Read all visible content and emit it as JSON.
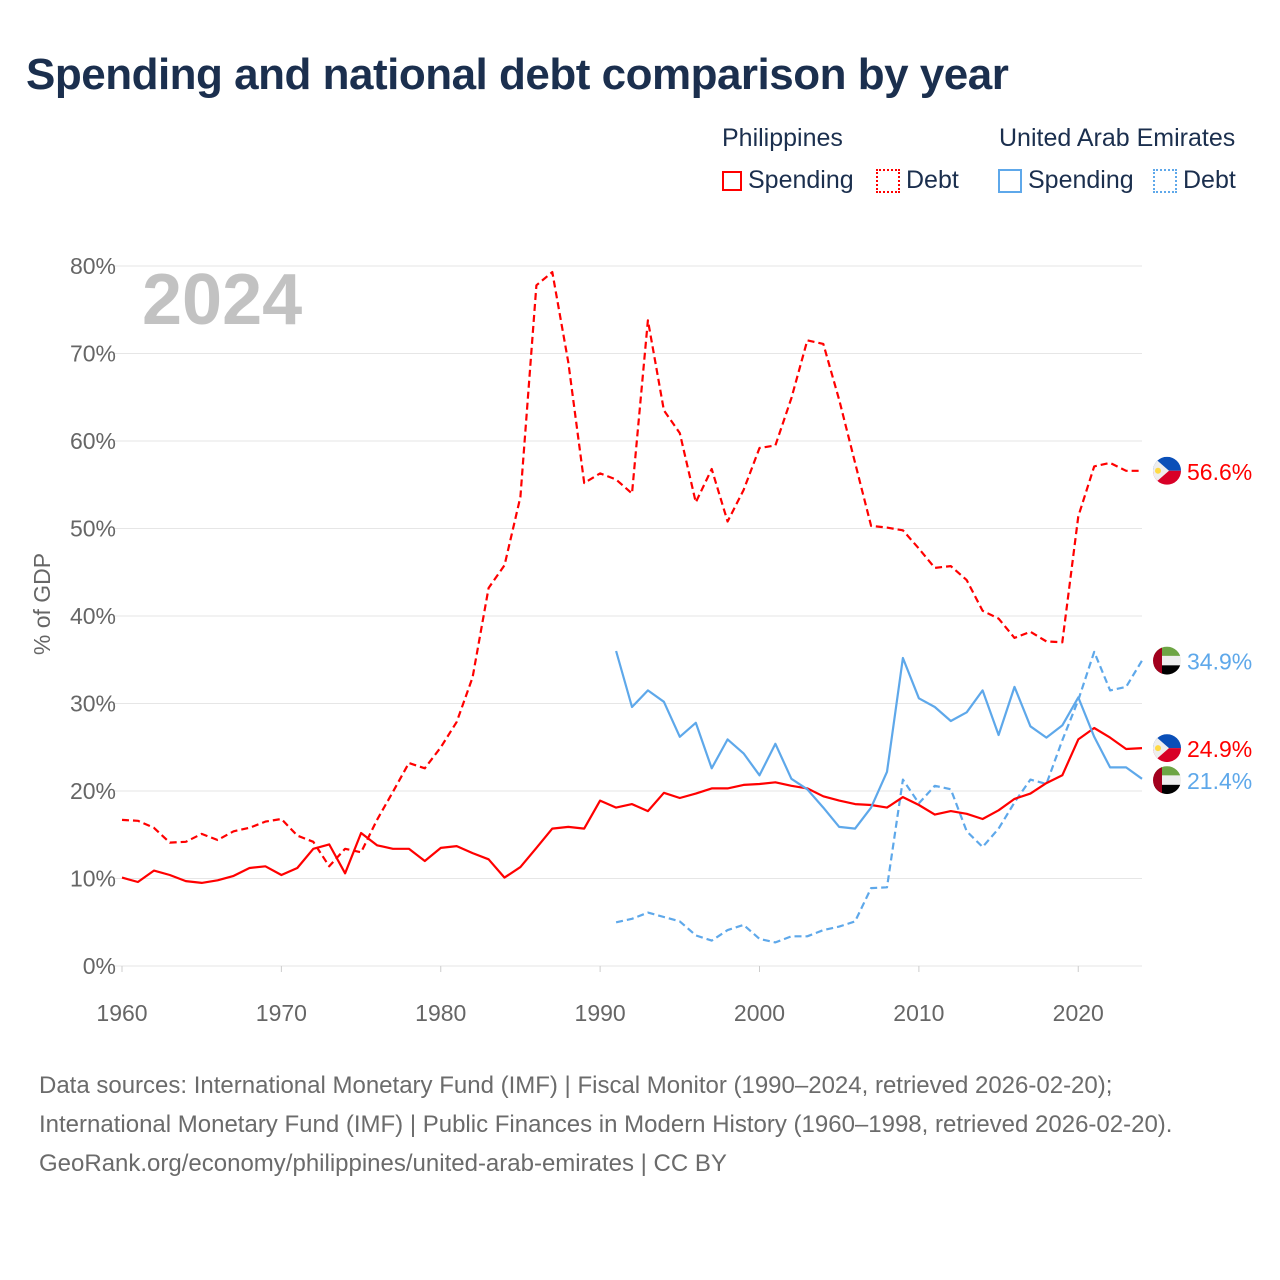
{
  "chart_data": {
    "type": "line",
    "title": "Spending and national debt comparison by year",
    "ylabel": "% of GDP",
    "xlabel": "",
    "year_label": "2024",
    "ylim": [
      0,
      80
    ],
    "xlim": [
      1960,
      2024
    ],
    "yticks": [
      0,
      10,
      20,
      30,
      40,
      50,
      60,
      70,
      80
    ],
    "ytick_labels": [
      "0%",
      "10%",
      "20%",
      "30%",
      "40%",
      "50%",
      "60%",
      "70%",
      "80%"
    ],
    "xticks": [
      1960,
      1970,
      1980,
      1990,
      2000,
      2010,
      2020
    ],
    "xtick_labels": [
      "1960",
      "1970",
      "1980",
      "1990",
      "2000",
      "2010",
      "2020"
    ],
    "grid": true,
    "legend": {
      "placement": "top-right",
      "groups": [
        {
          "country": "Philippines",
          "items": [
            "Spending",
            "Debt"
          ]
        },
        {
          "country": "United Arab Emirates",
          "items": [
            "Spending",
            "Debt"
          ]
        }
      ]
    },
    "series": [
      {
        "name": "Philippines Debt",
        "color": "#ff0000",
        "style": "dashed",
        "start": 1960,
        "end_label": "56.6%",
        "flag": "philippines-flag",
        "values": [
          16.7,
          16.6,
          15.8,
          14.1,
          14.2,
          15.1,
          14.4,
          15.4,
          15.8,
          16.5,
          16.8,
          14.9,
          14.2,
          11.4,
          13.4,
          13.0,
          16.7,
          19.9,
          23.2,
          22.6,
          25.0,
          27.9,
          33.0,
          43.2,
          45.8,
          53.6,
          77.8,
          79.3,
          69.0,
          55.2,
          56.3,
          55.6,
          54.0,
          73.8,
          63.5,
          60.9,
          53.0,
          56.8,
          50.8,
          54.4,
          59.2,
          59.5,
          64.9,
          71.5,
          71.1,
          64.7,
          57.5,
          50.3,
          50.1,
          49.8,
          47.7,
          45.5,
          45.7,
          44.1,
          40.6,
          39.7,
          37.5,
          38.2,
          37.1,
          37.0,
          51.4,
          57.1,
          57.5,
          56.6,
          56.6
        ]
      },
      {
        "name": "United Arab Emirates Debt",
        "color": "#5ea8ea",
        "style": "dashed",
        "start": 1991,
        "end_label": "34.9%",
        "flag": "uae-flag",
        "values": [
          5.0,
          5.4,
          6.1,
          5.6,
          5.1,
          3.5,
          2.9,
          4.1,
          4.7,
          3.1,
          2.7,
          3.4,
          3.4,
          4.1,
          4.5,
          5.1,
          8.9,
          9.0,
          21.3,
          18.6,
          20.6,
          20.2,
          15.4,
          13.6,
          15.7,
          18.7,
          21.3,
          20.8,
          25.8,
          30.4,
          35.9,
          31.5,
          31.9,
          34.9
        ]
      },
      {
        "name": "Philippines Spending",
        "color": "#ff0000",
        "style": "solid",
        "start": 1960,
        "end_label": "24.9%",
        "flag": "philippines-flag",
        "values": [
          10.1,
          9.6,
          10.9,
          10.4,
          9.7,
          9.5,
          9.8,
          10.3,
          11.2,
          11.4,
          10.4,
          11.2,
          13.4,
          13.9,
          10.6,
          15.2,
          13.8,
          13.4,
          13.4,
          12.0,
          13.5,
          13.7,
          12.9,
          12.2,
          10.1,
          11.3,
          13.5,
          15.7,
          15.9,
          15.7,
          18.9,
          18.1,
          18.5,
          17.7,
          19.8,
          19.2,
          19.7,
          20.3,
          20.3,
          20.7,
          20.8,
          21.0,
          20.6,
          20.3,
          19.4,
          18.9,
          18.5,
          18.4,
          18.1,
          19.3,
          18.4,
          17.3,
          17.7,
          17.4,
          16.8,
          17.8,
          19.1,
          19.7,
          20.9,
          21.8,
          25.9,
          27.2,
          26.1,
          24.8,
          24.9
        ]
      },
      {
        "name": "United Arab Emirates Spending",
        "color": "#5ea8ea",
        "style": "solid",
        "start": 1991,
        "end_label": "21.4%",
        "flag": "uae-flag",
        "values": [
          36.0,
          29.6,
          31.5,
          30.2,
          26.2,
          27.8,
          22.6,
          25.9,
          24.3,
          21.8,
          25.4,
          21.4,
          20.2,
          18.1,
          15.9,
          15.7,
          18.1,
          22.2,
          35.2,
          30.6,
          29.6,
          28.0,
          29.0,
          31.5,
          26.4,
          31.9,
          27.4,
          26.1,
          27.5,
          30.7,
          26.2,
          22.7,
          22.7,
          21.4
        ]
      }
    ]
  },
  "footer": {
    "sources": "Data sources: International Monetary Fund (IMF) | Fiscal Monitor (1990–2024, retrieved 2026-02-20); International Monetary Fund (IMF) | Public Finances in Modern History (1960–1998, retrieved 2026-02-20).",
    "attribution": "GeoRank.org/economy/philippines/united-arab-emirates | CC BY"
  }
}
